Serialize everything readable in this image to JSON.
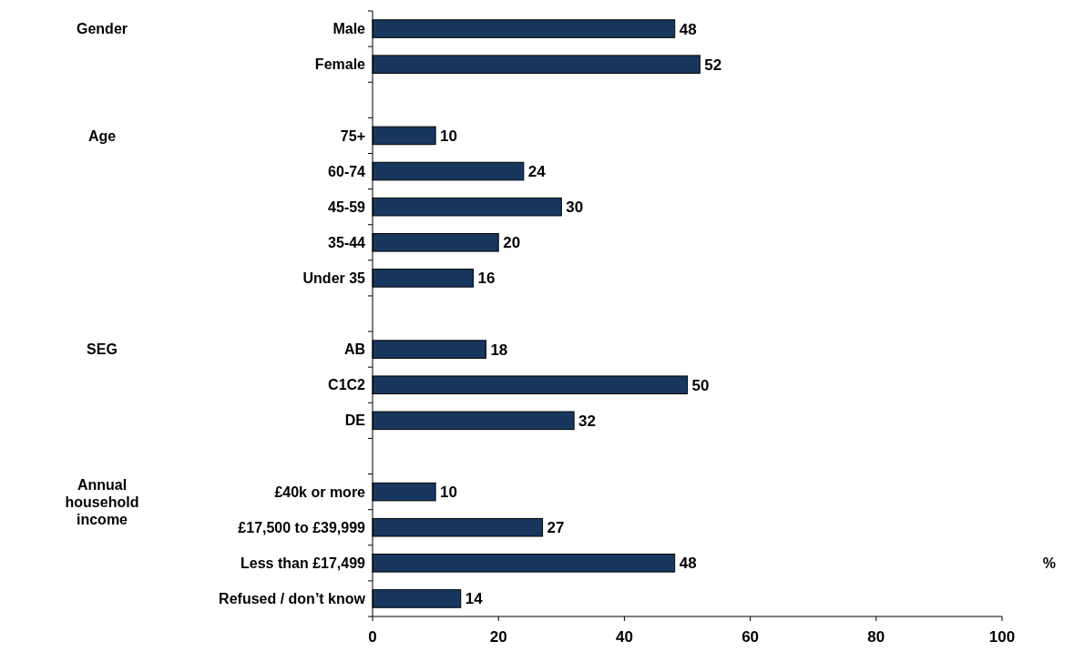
{
  "chart_data": {
    "type": "bar",
    "orientation": "horizontal",
    "categories": [
      "Male",
      "Female",
      null,
      "75+",
      "60-74",
      "45-59",
      "35-44",
      "Under 35",
      null,
      "AB",
      "C1C2",
      "DE",
      null,
      "£40k or more",
      "£17,500 to £39,999",
      "Less than £17,499",
      "Refused / don’t know"
    ],
    "values": [
      48,
      52,
      null,
      10,
      24,
      30,
      20,
      16,
      null,
      18,
      50,
      32,
      null,
      10,
      27,
      48,
      14
    ],
    "color": "#17375e",
    "xlim": [
      0,
      100
    ],
    "xticks": [
      0,
      20,
      40,
      60,
      80,
      100
    ],
    "xlabel": "%",
    "data_labels": true,
    "grid": false,
    "annotations": [
      "Gender",
      "Age",
      "SEG",
      "Annual household income"
    ]
  }
}
